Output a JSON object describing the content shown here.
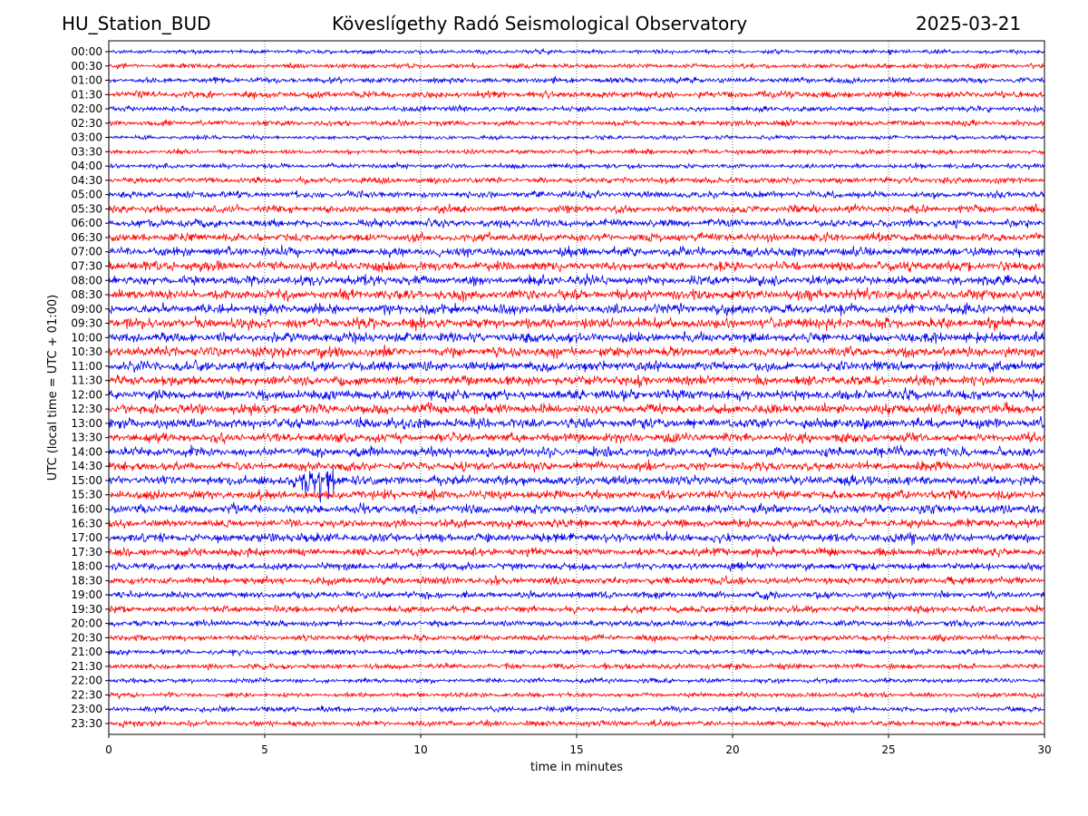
{
  "header": {
    "station": "HU_Station_BUD",
    "observatory": "Köveslígethy Radó Seismological Observatory",
    "date": "2025-03-21"
  },
  "chart_data": {
    "type": "line",
    "title": "Köveslígethy Radó Seismological Observatory",
    "xlabel": "time in minutes",
    "ylabel": "UTC (local time = UTC + 01:00)",
    "xlim": [
      0,
      30
    ],
    "xticks": [
      "0",
      "5",
      "10",
      "15",
      "20",
      "25",
      "30"
    ],
    "grid": "vertical dotted lines at x ticks",
    "colors": {
      "even_rows": "#0000ee",
      "odd_rows": "#ff0000"
    },
    "rows": [
      "00:00",
      "00:30",
      "01:00",
      "01:30",
      "02:00",
      "02:30",
      "03:00",
      "03:30",
      "04:00",
      "04:30",
      "05:00",
      "05:30",
      "06:00",
      "06:30",
      "07:00",
      "07:30",
      "08:00",
      "08:30",
      "09:00",
      "09:30",
      "10:00",
      "10:30",
      "11:00",
      "11:30",
      "12:00",
      "12:30",
      "13:00",
      "13:30",
      "14:00",
      "14:30",
      "15:00",
      "15:30",
      "16:00",
      "16:30",
      "17:00",
      "17:30",
      "18:00",
      "18:30",
      "19:00",
      "19:30",
      "20:00",
      "20:30",
      "21:00",
      "21:30",
      "22:00",
      "22:30",
      "23:00",
      "23:30"
    ],
    "row_noise_level": [
      0.3,
      0.35,
      0.4,
      0.5,
      0.4,
      0.4,
      0.3,
      0.35,
      0.35,
      0.45,
      0.5,
      0.55,
      0.6,
      0.6,
      0.7,
      0.7,
      0.7,
      0.75,
      0.75,
      0.8,
      0.75,
      0.75,
      0.75,
      0.7,
      0.75,
      0.75,
      0.75,
      0.7,
      0.7,
      0.65,
      0.7,
      0.65,
      0.65,
      0.6,
      0.65,
      0.6,
      0.55,
      0.55,
      0.5,
      0.5,
      0.45,
      0.45,
      0.4,
      0.4,
      0.35,
      0.35,
      0.4,
      0.4
    ],
    "events": [
      {
        "row": "01:00",
        "start_min": 13.9,
        "end_min": 14.7,
        "amplitude": 2.0
      },
      {
        "row": "01:00",
        "start_min": 18.3,
        "end_min": 19.3,
        "amplitude": 1.4
      },
      {
        "row": "02:30",
        "start_min": 1.6,
        "end_min": 2.3,
        "amplitude": 2.0
      },
      {
        "row": "06:00",
        "start_min": 8.0,
        "end_min": 9.3,
        "amplitude": 1.6
      },
      {
        "row": "15:00",
        "start_min": 5.9,
        "end_min": 7.3,
        "amplitude": 3.5
      },
      {
        "row": "15:00",
        "start_min": 4.2,
        "end_min": 9.0,
        "amplitude": 1.5
      },
      {
        "row": "15:00",
        "start_min": 10.5,
        "end_min": 12.0,
        "amplitude": 1.6
      },
      {
        "row": "16:00",
        "start_min": 3.7,
        "end_min": 4.3,
        "amplitude": 1.6
      },
      {
        "row": "17:00",
        "start_min": 24.5,
        "end_min": 26.5,
        "amplitude": 1.4
      },
      {
        "row": "19:00",
        "start_min": 5.8,
        "end_min": 6.3,
        "amplitude": 1.4
      },
      {
        "row": "23:30",
        "start_min": 0.0,
        "end_min": 1.0,
        "amplitude": 1.5
      }
    ]
  }
}
